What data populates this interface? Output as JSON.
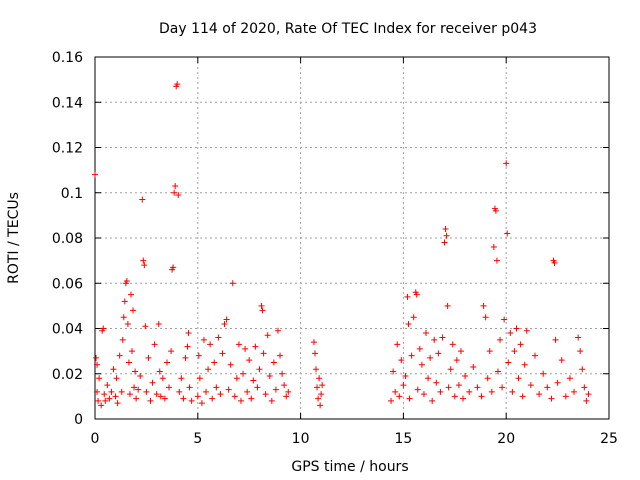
{
  "chart_data": {
    "type": "scatter",
    "title": "Day 114 of 2020, Rate Of TEC Index for receiver p043",
    "xlabel": "GPS time / hours",
    "ylabel": "ROTI / TECUs",
    "xlim": [
      0,
      25
    ],
    "ylim": [
      0,
      0.16
    ],
    "grid": true,
    "xticks": [
      0,
      5,
      10,
      15,
      20,
      25
    ],
    "xtick_labels": [
      "0",
      "5",
      "10",
      "15",
      "20",
      "25"
    ],
    "yticks": [
      0,
      0.02,
      0.04,
      0.06,
      0.08,
      0.1,
      0.12,
      0.14,
      0.16
    ],
    "ytick_labels": [
      "0",
      "0.02",
      "0.04",
      "0.06",
      "0.08",
      "0.1",
      "0.12",
      "0.14",
      "0.16"
    ],
    "marker": "plus",
    "color": "#ff0000",
    "series": [
      {
        "name": "ROTI",
        "points": [
          [
            0.0,
            0.108
          ],
          [
            0.05,
            0.027
          ],
          [
            0.1,
            0.024
          ],
          [
            0.1,
            0.012
          ],
          [
            0.15,
            0.008
          ],
          [
            0.2,
            0.018
          ],
          [
            0.3,
            0.006
          ],
          [
            0.35,
            0.039
          ],
          [
            0.4,
            0.04
          ],
          [
            0.45,
            0.011
          ],
          [
            0.5,
            0.008
          ],
          [
            0.6,
            0.015
          ],
          [
            0.7,
            0.009
          ],
          [
            0.8,
            0.012
          ],
          [
            0.9,
            0.022
          ],
          [
            1.0,
            0.01
          ],
          [
            1.05,
            0.018
          ],
          [
            1.1,
            0.007
          ],
          [
            1.2,
            0.028
          ],
          [
            1.3,
            0.012
          ],
          [
            1.35,
            0.035
          ],
          [
            1.4,
            0.045
          ],
          [
            1.45,
            0.052
          ],
          [
            1.5,
            0.06
          ],
          [
            1.55,
            0.061
          ],
          [
            1.6,
            0.042
          ],
          [
            1.65,
            0.025
          ],
          [
            1.7,
            0.011
          ],
          [
            1.75,
            0.055
          ],
          [
            1.8,
            0.03
          ],
          [
            1.85,
            0.048
          ],
          [
            1.9,
            0.014
          ],
          [
            1.95,
            0.021
          ],
          [
            2.0,
            0.009
          ],
          [
            2.1,
            0.013
          ],
          [
            2.2,
            0.019
          ],
          [
            2.3,
            0.097
          ],
          [
            2.35,
            0.07
          ],
          [
            2.4,
            0.068
          ],
          [
            2.45,
            0.041
          ],
          [
            2.5,
            0.012
          ],
          [
            2.6,
            0.027
          ],
          [
            2.7,
            0.008
          ],
          [
            2.8,
            0.016
          ],
          [
            2.9,
            0.033
          ],
          [
            3.0,
            0.011
          ],
          [
            3.1,
            0.042
          ],
          [
            3.15,
            0.021
          ],
          [
            3.2,
            0.01
          ],
          [
            3.3,
            0.018
          ],
          [
            3.4,
            0.009
          ],
          [
            3.5,
            0.025
          ],
          [
            3.6,
            0.014
          ],
          [
            3.7,
            0.03
          ],
          [
            3.75,
            0.066
          ],
          [
            3.8,
            0.067
          ],
          [
            3.85,
            0.1
          ],
          [
            3.9,
            0.103
          ],
          [
            3.95,
            0.147
          ],
          [
            4.0,
            0.148
          ],
          [
            4.05,
            0.099
          ],
          [
            4.1,
            0.012
          ],
          [
            4.2,
            0.018
          ],
          [
            4.3,
            0.009
          ],
          [
            4.4,
            0.027
          ],
          [
            4.5,
            0.032
          ],
          [
            4.55,
            0.038
          ],
          [
            4.6,
            0.014
          ],
          [
            4.7,
            0.008
          ],
          [
            5.0,
            0.01
          ],
          [
            5.05,
            0.028
          ],
          [
            5.1,
            0.018
          ],
          [
            5.2,
            0.007
          ],
          [
            5.3,
            0.035
          ],
          [
            5.4,
            0.012
          ],
          [
            5.5,
            0.022
          ],
          [
            5.6,
            0.033
          ],
          [
            5.7,
            0.009
          ],
          [
            5.8,
            0.025
          ],
          [
            5.9,
            0.014
          ],
          [
            6.0,
            0.036
          ],
          [
            6.1,
            0.011
          ],
          [
            6.2,
            0.029
          ],
          [
            6.3,
            0.042
          ],
          [
            6.4,
            0.044
          ],
          [
            6.5,
            0.013
          ],
          [
            6.6,
            0.024
          ],
          [
            6.7,
            0.06
          ],
          [
            6.8,
            0.01
          ],
          [
            6.9,
            0.018
          ],
          [
            7.0,
            0.033
          ],
          [
            7.1,
            0.008
          ],
          [
            7.2,
            0.02
          ],
          [
            7.3,
            0.031
          ],
          [
            7.4,
            0.012
          ],
          [
            7.5,
            0.026
          ],
          [
            7.6,
            0.009
          ],
          [
            7.7,
            0.017
          ],
          [
            7.8,
            0.032
          ],
          [
            7.9,
            0.014
          ],
          [
            8.0,
            0.022
          ],
          [
            8.1,
            0.05
          ],
          [
            8.15,
            0.048
          ],
          [
            8.2,
            0.029
          ],
          [
            8.3,
            0.011
          ],
          [
            8.4,
            0.037
          ],
          [
            8.5,
            0.019
          ],
          [
            8.6,
            0.008
          ],
          [
            8.7,
            0.025
          ],
          [
            8.8,
            0.013
          ],
          [
            8.9,
            0.039
          ],
          [
            9.0,
            0.028
          ],
          [
            9.1,
            0.02
          ],
          [
            9.2,
            0.015
          ],
          [
            9.3,
            0.01
          ],
          [
            9.4,
            0.012
          ],
          [
            10.65,
            0.034
          ],
          [
            10.7,
            0.029
          ],
          [
            10.75,
            0.022
          ],
          [
            10.8,
            0.014
          ],
          [
            10.85,
            0.009
          ],
          [
            10.9,
            0.018
          ],
          [
            10.95,
            0.006
          ],
          [
            11.0,
            0.011
          ],
          [
            11.05,
            0.015
          ],
          [
            14.4,
            0.008
          ],
          [
            14.5,
            0.021
          ],
          [
            14.6,
            0.012
          ],
          [
            14.7,
            0.033
          ],
          [
            14.8,
            0.01
          ],
          [
            14.9,
            0.026
          ],
          [
            15.0,
            0.015
          ],
          [
            15.1,
            0.019
          ],
          [
            15.2,
            0.054
          ],
          [
            15.25,
            0.042
          ],
          [
            15.3,
            0.009
          ],
          [
            15.4,
            0.028
          ],
          [
            15.5,
            0.045
          ],
          [
            15.6,
            0.056
          ],
          [
            15.65,
            0.055
          ],
          [
            15.7,
            0.013
          ],
          [
            15.8,
            0.031
          ],
          [
            15.9,
            0.024
          ],
          [
            16.0,
            0.011
          ],
          [
            16.1,
            0.038
          ],
          [
            16.2,
            0.018
          ],
          [
            16.3,
            0.027
          ],
          [
            16.4,
            0.008
          ],
          [
            16.5,
            0.035
          ],
          [
            16.6,
            0.016
          ],
          [
            16.7,
            0.029
          ],
          [
            16.8,
            0.012
          ],
          [
            16.9,
            0.036
          ],
          [
            17.0,
            0.078
          ],
          [
            17.05,
            0.084
          ],
          [
            17.1,
            0.081
          ],
          [
            17.15,
            0.05
          ],
          [
            17.2,
            0.014
          ],
          [
            17.3,
            0.022
          ],
          [
            17.4,
            0.033
          ],
          [
            17.5,
            0.01
          ],
          [
            17.6,
            0.026
          ],
          [
            17.7,
            0.015
          ],
          [
            17.8,
            0.03
          ],
          [
            17.9,
            0.009
          ],
          [
            18.0,
            0.019
          ],
          [
            18.2,
            0.012
          ],
          [
            18.4,
            0.023
          ],
          [
            18.6,
            0.014
          ],
          [
            18.8,
            0.01
          ],
          [
            18.9,
            0.05
          ],
          [
            19.0,
            0.045
          ],
          [
            19.1,
            0.018
          ],
          [
            19.2,
            0.03
          ],
          [
            19.3,
            0.012
          ],
          [
            19.4,
            0.076
          ],
          [
            19.45,
            0.093
          ],
          [
            19.5,
            0.092
          ],
          [
            19.55,
            0.07
          ],
          [
            19.6,
            0.021
          ],
          [
            19.7,
            0.035
          ],
          [
            19.8,
            0.014
          ],
          [
            19.9,
            0.044
          ],
          [
            20.0,
            0.113
          ],
          [
            20.05,
            0.082
          ],
          [
            20.1,
            0.025
          ],
          [
            20.2,
            0.038
          ],
          [
            20.3,
            0.012
          ],
          [
            20.4,
            0.03
          ],
          [
            20.5,
            0.04
          ],
          [
            20.6,
            0.018
          ],
          [
            20.7,
            0.033
          ],
          [
            20.8,
            0.01
          ],
          [
            20.9,
            0.024
          ],
          [
            21.0,
            0.039
          ],
          [
            21.2,
            0.015
          ],
          [
            21.4,
            0.028
          ],
          [
            21.6,
            0.011
          ],
          [
            21.8,
            0.02
          ],
          [
            22.0,
            0.014
          ],
          [
            22.2,
            0.009
          ],
          [
            22.3,
            0.07
          ],
          [
            22.35,
            0.069
          ],
          [
            22.4,
            0.035
          ],
          [
            22.5,
            0.016
          ],
          [
            22.7,
            0.026
          ],
          [
            22.9,
            0.01
          ],
          [
            23.1,
            0.018
          ],
          [
            23.3,
            0.012
          ],
          [
            23.5,
            0.036
          ],
          [
            23.6,
            0.03
          ],
          [
            23.7,
            0.022
          ],
          [
            23.8,
            0.014
          ],
          [
            23.9,
            0.008
          ],
          [
            24.0,
            0.011
          ]
        ]
      }
    ]
  }
}
